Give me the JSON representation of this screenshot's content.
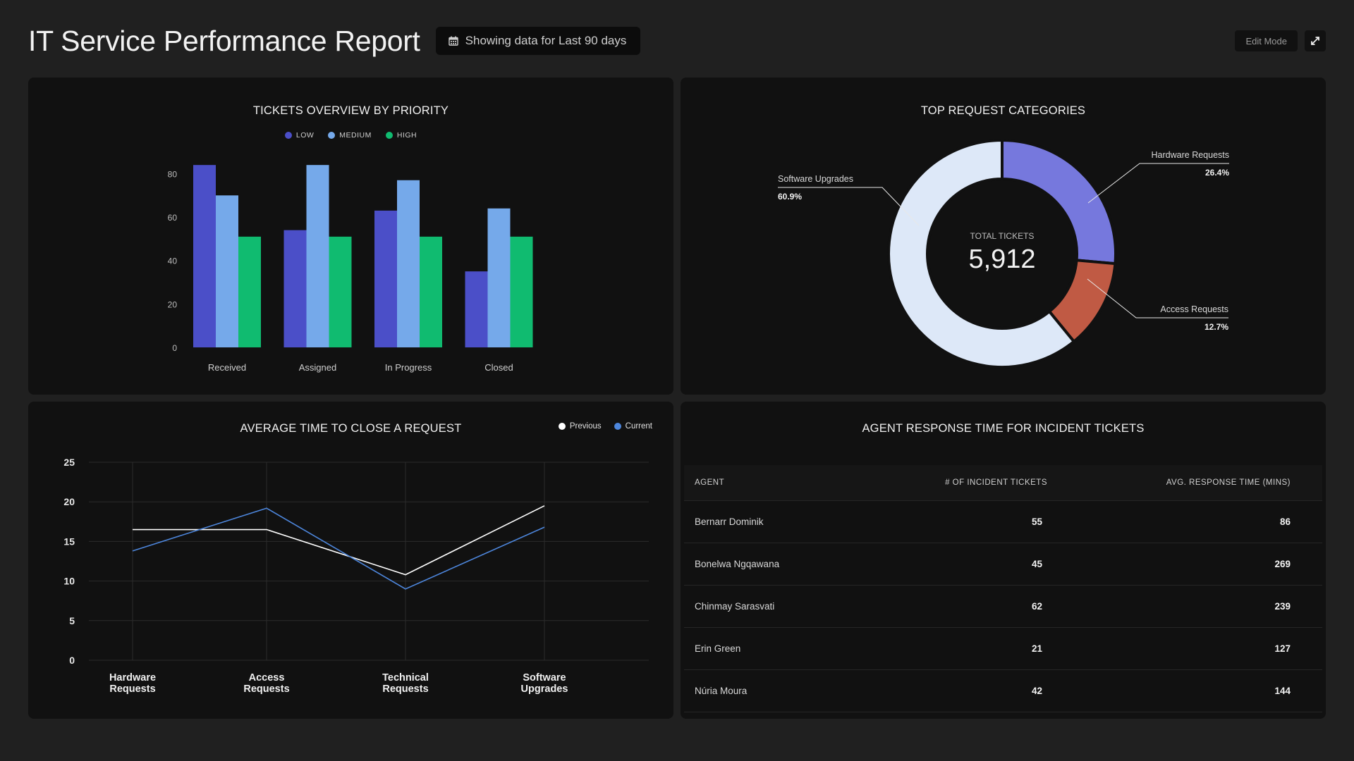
{
  "header": {
    "title": "IT Service Performance Report",
    "date_range": "Showing data for Last 90 days",
    "edit_label": "Edit Mode"
  },
  "tickets_overview": {
    "title": "TICKETS OVERVIEW BY PRIORITY",
    "legend": [
      "LOW",
      "MEDIUM",
      "HIGH"
    ]
  },
  "categories": {
    "title": "TOP REQUEST CATEGORIES",
    "center_label": "TOTAL TICKETS",
    "center_value": "5,912"
  },
  "avg_close": {
    "title": "AVERAGE TIME TO CLOSE A REQUEST",
    "legend": [
      "Previous",
      "Current"
    ]
  },
  "agents": {
    "title": "AGENT RESPONSE TIME FOR INCIDENT TICKETS",
    "columns": [
      "AGENT",
      "# OF INCIDENT TICKETS",
      "AVG. RESPONSE TIME (MINS)"
    ],
    "rows": [
      {
        "agent": "Bernarr Dominik",
        "tickets": "55",
        "avg": "86"
      },
      {
        "agent": "Bonelwa Ngqawana",
        "tickets": "45",
        "avg": "269"
      },
      {
        "agent": "Chinmay Sarasvati",
        "tickets": "62",
        "avg": "239"
      },
      {
        "agent": "Erin Green",
        "tickets": "21",
        "avg": "127"
      },
      {
        "agent": "Núria Moura",
        "tickets": "42",
        "avg": "144"
      }
    ]
  },
  "colors": {
    "low": "#4b4fc8",
    "medium": "#75a9ea",
    "high": "#10bb70",
    "hardware": "#7678dd",
    "access": "#c05a44",
    "software": "#dde8f8",
    "previous": "#ffffff",
    "current": "#4d86dc"
  },
  "chart_data": [
    {
      "type": "bar",
      "title": "TICKETS OVERVIEW BY PRIORITY",
      "categories": [
        "Received",
        "Assigned",
        "In Progress",
        "Closed"
      ],
      "series": [
        {
          "name": "LOW",
          "values": [
            84,
            54,
            63,
            35
          ]
        },
        {
          "name": "MEDIUM",
          "values": [
            70,
            84,
            77,
            64
          ]
        },
        {
          "name": "HIGH",
          "values": [
            51,
            51,
            51,
            51
          ]
        }
      ],
      "yticks": [
        0,
        20,
        40,
        60,
        80
      ],
      "ylim": [
        0,
        86
      ],
      "xlabel": "",
      "ylabel": "",
      "legend": "top-center"
    },
    {
      "type": "pie",
      "title": "TOP REQUEST CATEGORIES",
      "slices": [
        {
          "label": "Hardware Requests",
          "value": 26.4,
          "pct": "26.4%"
        },
        {
          "label": "Access Requests",
          "value": 12.7,
          "pct": "12.7%"
        },
        {
          "label": "Software Upgrades",
          "value": 60.9,
          "pct": "60.9%"
        }
      ],
      "donut": true
    },
    {
      "type": "line",
      "title": "AVERAGE TIME TO CLOSE A REQUEST",
      "categories": [
        "Hardware Requests",
        "Access Requests",
        "Technical Requests",
        "Software Upgrades"
      ],
      "series": [
        {
          "name": "Previous",
          "values": [
            16.5,
            16.5,
            10.8,
            19.5
          ]
        },
        {
          "name": "Current",
          "values": [
            13.8,
            19.2,
            9.0,
            16.8
          ]
        }
      ],
      "yticks": [
        0,
        5,
        10,
        15,
        20,
        25
      ],
      "ylim": [
        0,
        25
      ],
      "grid": true,
      "legend": "top-right"
    }
  ]
}
